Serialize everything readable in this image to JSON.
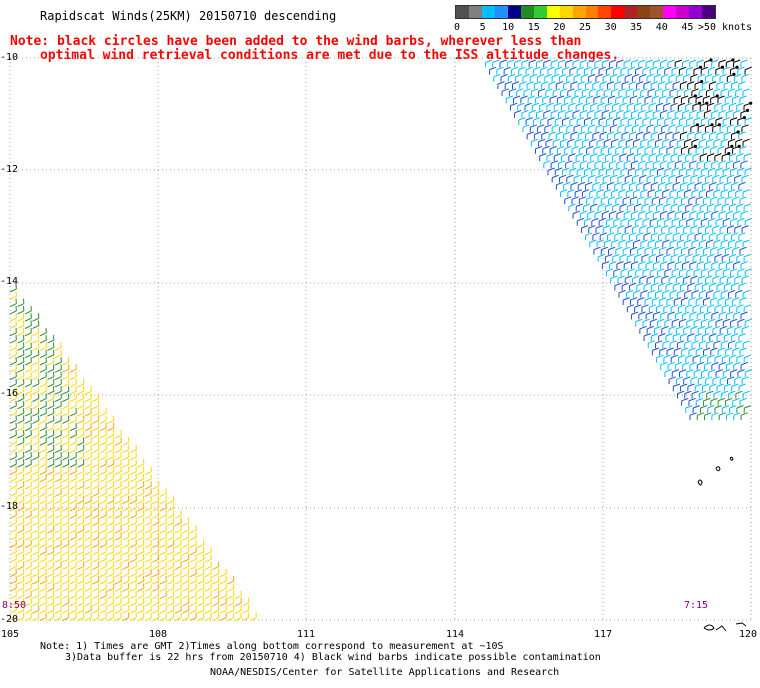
{
  "header": {
    "title": "Rapidscat Winds(25KM) 20150710 descending",
    "note_line1": "Note: black circles have been added to the wind barbs, wherever less than",
    "note_line2": "optimal wind retrieval conditions are met due to the ISS altitude changes."
  },
  "legend": {
    "unit": ">50 knots",
    "ticks": [
      "0",
      "5",
      "10",
      "15",
      "20",
      "25",
      "30",
      "35",
      "40",
      "45",
      ">50 knots"
    ],
    "colors": [
      "#505050",
      "#808080",
      "#00bfff",
      "#1e90ff",
      "#00008b",
      "#228b22",
      "#32cd32",
      "#ffff00",
      "#ffd700",
      "#ffa500",
      "#ff7f00",
      "#ff4500",
      "#ff0000",
      "#b22222",
      "#8b4513",
      "#a0522d",
      "#ff00ff",
      "#cc00cc",
      "#9400d3",
      "#4b0082"
    ]
  },
  "map": {
    "lat_labels": [
      "-10",
      "-12",
      "-14",
      "-16",
      "-18",
      "-20"
    ],
    "lon_labels": [
      "105",
      "108",
      "111",
      "114",
      "117",
      "120"
    ],
    "time_left": "8:50",
    "time_right": "7:15",
    "colors": {
      "grid": "#a0a0a0",
      "coast": "#000000",
      "barb_yellow": "#ffd700",
      "barb_orange": "#ffa500",
      "barb_green": "#2e8b2e",
      "barb_cyan": "#00bfff",
      "barb_blue": "#1e4fd0",
      "contamination": "#000000"
    }
  },
  "footer": {
    "line1": "Note: 1) Times are GMT 2)Times along bottom correspond to measurement at ~10S",
    "line2": "3)Data buffer is 22 hrs from 20150710 4) Black wind barbs indicate possible contamination",
    "line3": "NOAA/NESDIS/Center for Satellite Applications and Research"
  }
}
